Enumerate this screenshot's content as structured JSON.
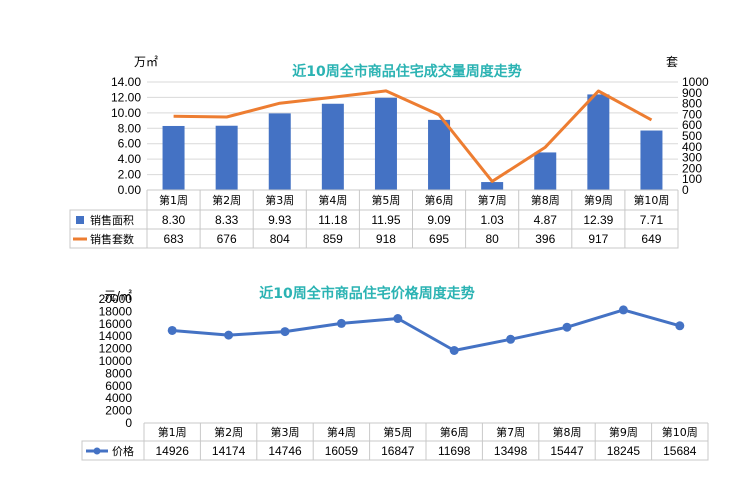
{
  "chart_data": [
    {
      "type": "bar",
      "title": "近10周全市商品住宅成交量周度走势",
      "y_unit_left": "万㎡",
      "y_unit_right": "套",
      "categories": [
        "第1周",
        "第2周",
        "第3周",
        "第4周",
        "第5周",
        "第6周",
        "第7周",
        "第8周",
        "第9周",
        "第10周"
      ],
      "ylim": [
        0,
        14
      ],
      "y_ticks": [
        "0.00",
        "2.00",
        "4.00",
        "6.00",
        "8.00",
        "10.00",
        "12.00",
        "14.00"
      ],
      "y2lim": [
        0,
        1000
      ],
      "y2_ticks": [
        "0",
        "100",
        "200",
        "300",
        "400",
        "500",
        "600",
        "700",
        "800",
        "900",
        "1000"
      ],
      "series": [
        {
          "name": "销售面积",
          "type": "bar",
          "axis": "left",
          "color": "#4472c4",
          "values": [
            8.3,
            8.33,
            9.93,
            11.18,
            11.95,
            9.09,
            1.03,
            4.87,
            12.39,
            7.71
          ],
          "labels": [
            "8.30",
            "8.33",
            "9.93",
            "11.18",
            "11.95",
            "9.09",
            "1.03",
            "4.87",
            "12.39",
            "7.71"
          ]
        },
        {
          "name": "销售套数",
          "type": "line",
          "axis": "right",
          "color": "#ed7d31",
          "values": [
            683,
            676,
            804,
            859,
            918,
            695,
            80,
            396,
            917,
            649
          ],
          "labels": [
            "683",
            "676",
            "804",
            "859",
            "918",
            "695",
            "80",
            "396",
            "917",
            "649"
          ]
        }
      ],
      "grid": true,
      "legend": "data-table"
    },
    {
      "type": "line",
      "title": "近10周全市商品住宅价格周度走势",
      "y_unit_left": "元/㎡",
      "categories": [
        "第1周",
        "第2周",
        "第3周",
        "第4周",
        "第5周",
        "第6周",
        "第7周",
        "第8周",
        "第9周",
        "第10周"
      ],
      "ylim": [
        0,
        20000
      ],
      "y_ticks": [
        "0",
        "2000",
        "4000",
        "6000",
        "8000",
        "10000",
        "12000",
        "14000",
        "16000",
        "18000",
        "20000"
      ],
      "series": [
        {
          "name": "价格",
          "type": "line",
          "color": "#4472c4",
          "values": [
            14926,
            14174,
            14746,
            16059,
            16847,
            11698,
            13498,
            15447,
            18245,
            15684
          ],
          "labels": [
            "14926",
            "14174",
            "14746",
            "16059",
            "16847",
            "11698",
            "13498",
            "15447",
            "18245",
            "15684"
          ]
        }
      ],
      "grid": false,
      "legend": "data-table"
    }
  ]
}
